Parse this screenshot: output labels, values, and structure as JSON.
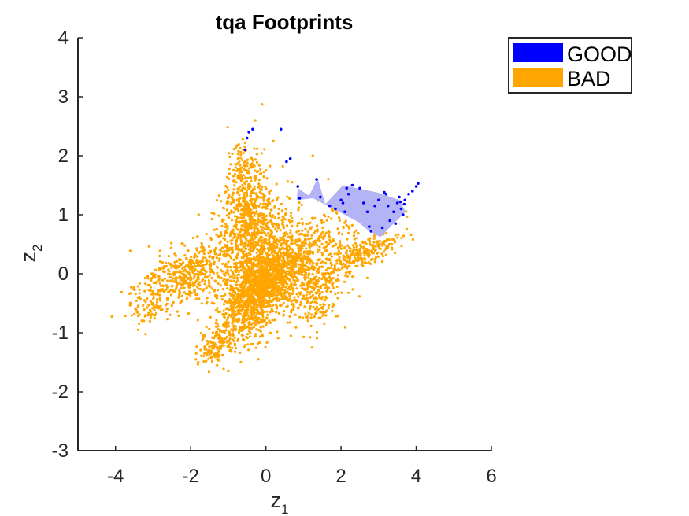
{
  "chart_data": {
    "type": "scatter",
    "title": "tqa Footprints",
    "xlabel": {
      "base": "z",
      "sub": "1"
    },
    "ylabel": {
      "base": "z",
      "sub": "2"
    },
    "xlim": [
      -5,
      6
    ],
    "ylim": [
      -3,
      4
    ],
    "xticks": [
      -4,
      -2,
      0,
      2,
      4,
      6
    ],
    "yticks": [
      -3,
      -2,
      -1,
      0,
      1,
      2,
      3,
      4
    ],
    "xtick_labels": [
      "-4",
      "-2",
      "0",
      "2",
      "4",
      "6"
    ],
    "ytick_labels": [
      "-3",
      "-2",
      "-1",
      "0",
      "1",
      "2",
      "3",
      "4"
    ],
    "grid": false,
    "legend_position": "outside-top-right",
    "series": [
      {
        "name": "GOOD",
        "color": "#0000ff",
        "footprint_color": "#b3b3f5",
        "footprint": [
          [
            0.85,
            1.45
          ],
          [
            1.15,
            1.32
          ],
          [
            1.38,
            1.62
          ],
          [
            1.58,
            1.18
          ],
          [
            2.05,
            1.5
          ],
          [
            2.95,
            1.38
          ],
          [
            3.55,
            1.25
          ],
          [
            3.72,
            1.05
          ],
          [
            3.35,
            0.82
          ],
          [
            3.05,
            0.62
          ],
          [
            2.75,
            0.72
          ],
          [
            2.45,
            0.88
          ],
          [
            1.8,
            1.1
          ],
          [
            1.25,
            1.28
          ],
          [
            0.82,
            1.25
          ]
        ],
        "points": [
          [
            -0.55,
            2.1
          ],
          [
            -0.5,
            2.3
          ],
          [
            -0.45,
            2.4
          ],
          [
            -0.35,
            2.45
          ],
          [
            0.4,
            2.45
          ],
          [
            0.55,
            1.9
          ],
          [
            0.65,
            1.95
          ],
          [
            0.85,
            1.48
          ],
          [
            0.9,
            1.28
          ],
          [
            1.35,
            1.6
          ],
          [
            1.45,
            1.3
          ],
          [
            1.7,
            1.15
          ],
          [
            1.85,
            1.1
          ],
          [
            2.0,
            1.25
          ],
          [
            2.05,
            1.2
          ],
          [
            2.1,
            1.05
          ],
          [
            2.15,
            1.45
          ],
          [
            2.2,
            1.35
          ],
          [
            2.3,
            1.5
          ],
          [
            2.5,
            1.45
          ],
          [
            2.6,
            1.2
          ],
          [
            2.7,
            1.05
          ],
          [
            2.75,
            0.8
          ],
          [
            2.8,
            0.72
          ],
          [
            2.9,
            1.15
          ],
          [
            3.0,
            1.25
          ],
          [
            3.1,
            0.78
          ],
          [
            3.2,
            1.35
          ],
          [
            3.3,
            0.9
          ],
          [
            3.4,
            1.05
          ],
          [
            3.45,
            0.85
          ],
          [
            3.5,
            1.2
          ],
          [
            3.55,
            1.3
          ],
          [
            3.6,
            1.1
          ],
          [
            3.65,
            1.0
          ],
          [
            3.7,
            1.25
          ],
          [
            3.8,
            1.35
          ],
          [
            3.9,
            1.4
          ],
          [
            4.0,
            1.48
          ],
          [
            4.05,
            1.53
          ],
          [
            3.15,
            1.38
          ],
          [
            3.25,
            1.15
          ],
          [
            3.58,
            1.22
          ],
          [
            3.68,
            1.18
          ]
        ]
      },
      {
        "name": "BAD",
        "color": "#ffa500",
        "clusters": [
          {
            "cx": 0.0,
            "cy": -0.1,
            "sx": 0.55,
            "sy": 0.35,
            "n": 900
          },
          {
            "cx": 0.6,
            "cy": 0.15,
            "sx": 1.1,
            "sy": 0.45,
            "n": 900
          },
          {
            "cx": -2.1,
            "cy": 0.0,
            "sx": 0.8,
            "sy": 0.3,
            "n": 500
          },
          {
            "cx": -0.6,
            "cy": -0.6,
            "sx": 0.5,
            "sy": 0.4,
            "n": 450
          },
          {
            "cx": -1.3,
            "cy": -1.2,
            "sx": 0.3,
            "sy": 0.2,
            "n": 120
          },
          {
            "cx": -0.5,
            "cy": 1.2,
            "sx": 0.4,
            "sy": 0.45,
            "n": 350
          },
          {
            "cx": -0.3,
            "cy": 0.7,
            "sx": 0.55,
            "sy": 0.4,
            "n": 350
          },
          {
            "cx": 2.6,
            "cy": 0.35,
            "sx": 0.6,
            "sy": 0.15,
            "n": 220
          },
          {
            "cx": -0.7,
            "cy": 1.85,
            "sx": 0.2,
            "sy": 0.25,
            "n": 70
          },
          {
            "cx": 1.3,
            "cy": -0.4,
            "sx": 0.45,
            "sy": 0.35,
            "n": 200
          },
          {
            "cx": -3.1,
            "cy": -0.55,
            "sx": 0.25,
            "sy": 0.25,
            "n": 60
          }
        ],
        "points": [
          [
            -0.1,
            2.87
          ],
          [
            -0.28,
            2.6
          ],
          [
            0.2,
            2.25
          ],
          [
            1.25,
            2.0
          ],
          [
            0.45,
            1.82
          ],
          [
            0.7,
            1.55
          ],
          [
            -1.0,
            -1.65
          ],
          [
            -3.4,
            -0.95
          ],
          [
            -3.0,
            -0.35
          ],
          [
            -1.8,
            -1.5
          ],
          [
            3.1,
            0.48
          ],
          [
            3.2,
            0.55
          ],
          [
            1.95,
            0.95
          ],
          [
            2.2,
            0.8
          ],
          [
            1.55,
            1.0
          ],
          [
            -0.2,
            -1.45
          ]
        ]
      }
    ]
  }
}
